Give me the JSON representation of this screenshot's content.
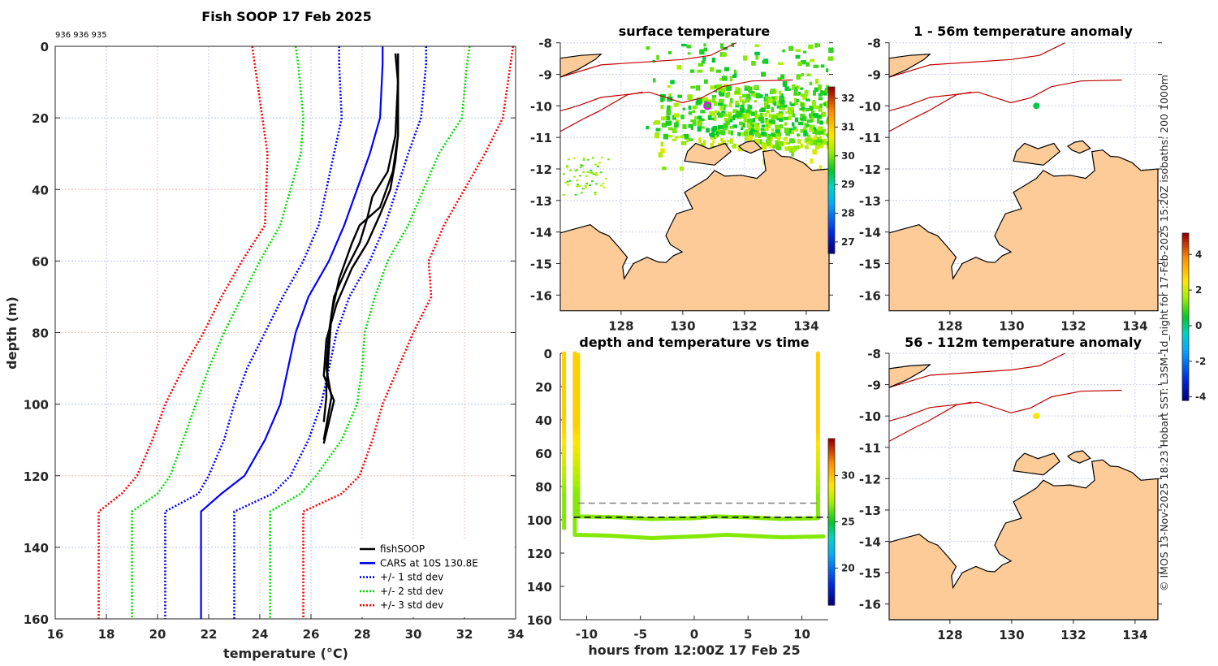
{
  "chart_data": [
    {
      "type": "line",
      "title": "Fish SOOP 17 Feb 2025",
      "subtitle": "936 936 935",
      "xlabel": "temperature (°C)",
      "xlabel_main": "temperature (",
      "xlabel_sup": "o",
      "xlabel_unit": "C)",
      "ylabel": "depth (m)",
      "xlim": [
        16,
        34
      ],
      "ylim": [
        0,
        160
      ],
      "y_reversed": true,
      "grid": true,
      "xticks": [
        "16",
        "18",
        "20",
        "22",
        "24",
        "26",
        "28",
        "30",
        "32",
        "34"
      ],
      "yticks": [
        "0",
        "20",
        "40",
        "60",
        "80",
        "100",
        "120",
        "140",
        "160"
      ],
      "legend_position": "bottom-right",
      "depths": [
        0,
        5,
        20,
        30,
        50,
        60,
        70,
        80,
        90,
        100,
        110,
        120,
        125,
        130,
        160
      ],
      "series": [
        {
          "name": "CARS at 10S 130.8E",
          "style": "solid",
          "color": "#0000ff",
          "values": [
            28.8,
            28.8,
            28.7,
            28.3,
            27.3,
            26.7,
            25.9,
            25.4,
            25.1,
            24.8,
            24.2,
            23.4,
            22.5,
            21.7,
            21.7
          ]
        },
        {
          "name": "+/- 1 std dev",
          "style": "dotted",
          "color": "#0000ff",
          "values": [
            27.1,
            27.1,
            27.2,
            26.9,
            26.3,
            25.7,
            24.9,
            24.2,
            23.5,
            23.0,
            22.6,
            22.0,
            21.6,
            20.3,
            20.3
          ]
        },
        {
          "name": "+/- 1 std dev (upper)",
          "legend": false,
          "style": "dotted",
          "color": "#0000ff",
          "values": [
            30.5,
            30.5,
            30.3,
            29.8,
            28.9,
            28.3,
            27.5,
            27.0,
            26.7,
            26.4,
            25.9,
            25.2,
            24.5,
            23.0,
            23.0
          ]
        },
        {
          "name": "+/- 2 std dev",
          "style": "dotted",
          "color": "#00dd00",
          "values": [
            25.4,
            25.5,
            25.7,
            25.6,
            24.8,
            24.0,
            23.3,
            22.6,
            22.0,
            21.5,
            21.0,
            20.5,
            20.0,
            19.0,
            19.0
          ]
        },
        {
          "name": "+/- 2 std dev (upper)",
          "legend": false,
          "style": "dotted",
          "color": "#00dd00",
          "values": [
            32.2,
            32.1,
            31.9,
            31.0,
            29.8,
            29.0,
            28.5,
            28.1,
            28.0,
            27.8,
            27.2,
            26.2,
            25.6,
            24.4,
            24.4
          ]
        },
        {
          "name": "+/- 3 std dev",
          "style": "dotted",
          "color": "#ff0000",
          "values": [
            23.7,
            23.8,
            24.1,
            24.3,
            24.2,
            23.3,
            22.5,
            21.8,
            21.0,
            20.3,
            19.8,
            19.2,
            18.6,
            17.7,
            17.7
          ]
        },
        {
          "name": "+/- 3 std dev (upper)",
          "legend": false,
          "style": "dotted",
          "color": "#ff0000",
          "values": [
            33.9,
            33.8,
            33.5,
            32.8,
            31.2,
            30.6,
            30.7,
            30.0,
            29.4,
            28.8,
            28.4,
            27.9,
            27.2,
            25.7,
            25.7
          ]
        }
      ],
      "fishsoop": {
        "name": "fishSOOP",
        "color": "#000000",
        "profiles": [
          {
            "depths": [
              2,
              10,
              25,
              35,
              45,
              50,
              55,
              65,
              75,
              85,
              95,
              98,
              105
            ],
            "values": [
              29.4,
              29.4,
              29.4,
              29.2,
              28.7,
              27.9,
              27.6,
              27.1,
              26.8,
              26.7,
              26.6,
              26.6,
              26.5
            ]
          },
          {
            "depths": [
              2,
              10,
              25,
              35,
              42,
              48,
              55,
              62,
              70,
              80,
              90,
              98,
              110
            ],
            "values": [
              29.4,
              29.4,
              29.3,
              29.0,
              28.4,
              28.2,
              27.9,
              27.4,
              26.9,
              26.7,
              26.6,
              26.8,
              26.5
            ]
          },
          {
            "depths": [
              2,
              10,
              25,
              32,
              40,
              47,
              55,
              62,
              72,
              82,
              92,
              99,
              111
            ],
            "values": [
              29.3,
              29.4,
              29.4,
              29.3,
              29.1,
              28.7,
              28.2,
              27.6,
              27.0,
              26.6,
              26.5,
              26.9,
              26.5
            ]
          }
        ]
      }
    },
    {
      "type": "heatmap",
      "title": "surface temperature",
      "lon_range": [
        126.03,
        134.74
      ],
      "lat_range": [
        -16.5,
        -8
      ],
      "xticks": [
        "128",
        "130",
        "132",
        "134"
      ],
      "yticks": [
        "-8",
        "-9",
        "-10",
        "-11",
        "-12",
        "-13",
        "-14",
        "-15",
        "-16"
      ],
      "colorbar": {
        "min": 26.6,
        "max": 32.4,
        "ticks": [
          "27",
          "28",
          "29",
          "30",
          "31",
          "32"
        ]
      },
      "marker": {
        "lon": 130.8,
        "lat": -10.0,
        "color": "#ff00ff"
      }
    },
    {
      "type": "scatter",
      "title": "depth and temperature vs time",
      "xlabel": "hours from 12:00Z 17 Feb 25",
      "xlim": [
        -12.45,
        12.45
      ],
      "ylim": [
        0,
        160
      ],
      "y_reversed": true,
      "xticks": [
        "-10",
        "-5",
        "0",
        "5",
        "10"
      ],
      "yticks": [
        "0",
        "20",
        "40",
        "60",
        "80",
        "100",
        "120",
        "140",
        "160"
      ],
      "colorbar": {
        "min": 16,
        "max": 34,
        "ticks": [
          "20",
          "25",
          "30"
        ]
      },
      "tracks": [
        {
          "t": [
            -12.1,
            -12.1
          ],
          "d": [
            0,
            105
          ]
        },
        {
          "t": [
            -11.1,
            -11.1,
            -8,
            -4,
            0,
            3,
            8,
            12
          ],
          "d": [
            0,
            109,
            109.5,
            111,
            110,
            109,
            110.5,
            110
          ]
        },
        {
          "t": [
            -10.8,
            -10.8,
            -7,
            -4,
            0,
            2,
            5,
            8,
            11.5,
            11.5
          ],
          "d": [
            1,
            98,
            98.5,
            99.5,
            99,
            98,
            98.5,
            99.5,
            99,
            0
          ]
        }
      ],
      "ref_lines": [
        {
          "depth": 90,
          "t": [
            -10.8,
            11.5
          ],
          "color": "#808080"
        },
        {
          "depth": 98.5,
          "t": [
            -11.2,
            12.45
          ],
          "color": "#000000"
        }
      ]
    },
    {
      "type": "scatter",
      "title": "1 - 56m temperature anomaly",
      "xticks": [
        "128",
        "130",
        "132",
        "134"
      ],
      "yticks": [
        "-8",
        "-9",
        "-10",
        "-11",
        "-12",
        "-13",
        "-14",
        "-15",
        "-16"
      ],
      "point": {
        "lon": 130.8,
        "lat": -10.0,
        "anomaly": 0.3
      }
    },
    {
      "type": "scatter",
      "title": "56 - 112m temperature anomaly",
      "xticks": [
        "128",
        "130",
        "132",
        "134"
      ],
      "yticks": [
        "-8",
        "-9",
        "-10",
        "-11",
        "-12",
        "-13",
        "-14",
        "-15",
        "-16"
      ],
      "point": {
        "lon": 130.8,
        "lat": -10.0,
        "anomaly": 2.6
      },
      "colorbar": {
        "min": -4.2,
        "max": 5.2,
        "ticks": [
          "4",
          "2",
          "0",
          "-2",
          "-4"
        ]
      }
    }
  ],
  "credit": "© IMOS 13-Nov-2025 18:23 Hobart SST: L3SM-1d_night for 17-Feb-2025 15:20Z isobaths: 200  1000m",
  "colors": {
    "land": "#fccb98",
    "isobath": "#c00000"
  }
}
